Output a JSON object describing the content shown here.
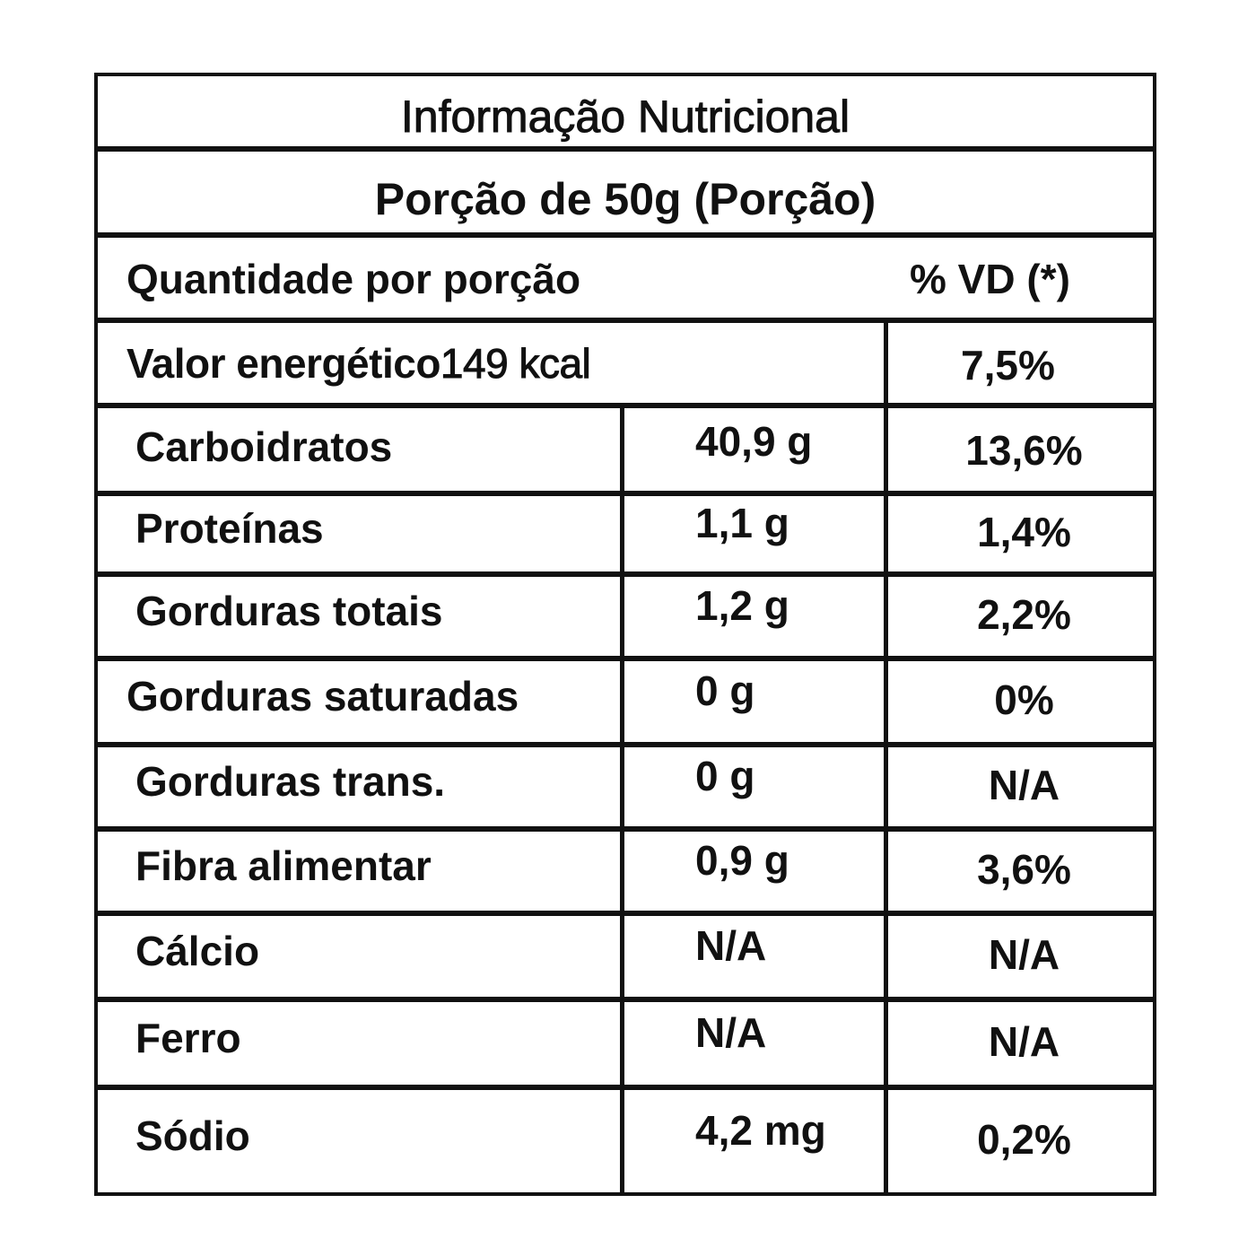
{
  "title": "Informação Nutricional",
  "serving": "Porção  de 50g (Porção)",
  "header": {
    "amount_label": "Quantidade por porção",
    "dv_label": "% VD (*)"
  },
  "energy": {
    "label": "Valor energético",
    "amount": "149 kcal",
    "dv": "7,5%"
  },
  "rows": [
    {
      "label": "Carboidratos",
      "amount": "40,9 g",
      "dv": "13,6%"
    },
    {
      "label": "Proteínas",
      "amount": "1,1 g",
      "dv": "1,4%"
    },
    {
      "label": "Gorduras totais",
      "amount": "1,2 g",
      "dv": "2,2%"
    },
    {
      "label": "Gorduras saturadas",
      "amount": "0 g",
      "dv": "0%"
    },
    {
      "label": "Gorduras trans.",
      "amount": "0 g",
      "dv": "N/A"
    },
    {
      "label": "Fibra alimentar",
      "amount": "0,9 g",
      "dv": "3,6%"
    },
    {
      "label": "Cálcio",
      "amount": "N/A",
      "dv": "N/A"
    },
    {
      "label": "Ferro",
      "amount": "N/A",
      "dv": "N/A"
    },
    {
      "label": "Sódio",
      "amount": "4,2 mg",
      "dv": "0,2%"
    }
  ]
}
